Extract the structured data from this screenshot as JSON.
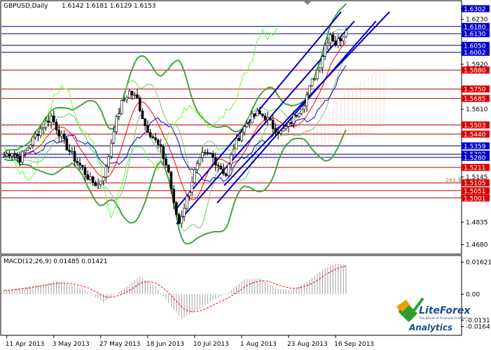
{
  "header": {
    "symbol": "GBPUSD,Daily",
    "ohlc": "1.6142 1.6181 1.6129 1.6153"
  },
  "colors": {
    "background": "#ffffff",
    "bull_candle": "#00c000",
    "bear_candle": "#000000",
    "channel": "#0000c0",
    "resistance": "#c00000",
    "support_blue": "#00006e",
    "bollinger": "#41a541",
    "envelope_inner": "#ff0000",
    "chikou": "#66ff33",
    "macd_hist": "#a0a0a0",
    "macd_signal": "#ff0000",
    "price_tag_red": "#dd0000",
    "price_tag_blue": "#0000cc"
  },
  "price_scale": {
    "ticks": [
      "1.6302",
      "1.6230",
      "1.6050",
      "1.5920",
      "1.5750",
      "1.5610",
      "1.5440",
      "1.5280",
      "1.5145",
      "1.5010",
      "1.4835",
      "1.4680"
    ],
    "ylim": [
      1.468,
      1.6302
    ]
  },
  "level_tags": [
    {
      "label": "1.6302",
      "value": 1.6302,
      "color": "#0000cc"
    },
    {
      "label": "1.6180",
      "value": 1.618,
      "color": "#0000cc"
    },
    {
      "label": "1.6130",
      "value": 1.613,
      "color": "#0000cc"
    },
    {
      "label": "1.6050",
      "value": 1.605,
      "color": "#0000cc"
    },
    {
      "label": "1.6002",
      "value": 1.6002,
      "color": "#0000cc"
    },
    {
      "label": "1.5880",
      "value": 1.588,
      "color": "#dd0000"
    },
    {
      "label": "1.5750",
      "value": 1.575,
      "color": "#dd0000"
    },
    {
      "label": "1.5685",
      "value": 1.5685,
      "color": "#dd0000"
    },
    {
      "label": "1.5503",
      "value": 1.5503,
      "color": "#dd0000"
    },
    {
      "label": "1.5440",
      "value": 1.544,
      "color": "#dd0000"
    },
    {
      "label": "1.5359",
      "value": 1.5359,
      "color": "#0000cc"
    },
    {
      "label": "1.5302",
      "value": 1.5302,
      "color": "#0000cc"
    },
    {
      "label": "1.5280",
      "value": 1.528,
      "color": "#0000cc"
    },
    {
      "label": "1.5211",
      "value": 1.5211,
      "color": "#dd0000"
    },
    {
      "label": "1.5105",
      "value": 1.5105,
      "color": "#dd0000"
    },
    {
      "label": "1.5051",
      "value": 1.5051,
      "color": "#dd0000"
    },
    {
      "label": "1.5001",
      "value": 1.5001,
      "color": "#dd0000"
    }
  ],
  "fibo_label": "261.8",
  "time_axis": [
    "11 Apr 2013",
    "3 May 2013",
    "27 May 2013",
    "18 Jun 2013",
    "10 Jul 2013",
    "1 Aug 2013",
    "23 Aug 2013",
    "16 Sep 2013"
  ],
  "macd": {
    "title": "MACD(12,26,9) 0.01485 0.01421",
    "ticks": [
      "0.01621",
      "0.00",
      "-0.0131",
      "-0.0164"
    ],
    "ylim": [
      -0.0164,
      0.01621
    ]
  },
  "logo": {
    "brand": "LiteForex",
    "tagline": "The World of Financial Freedom",
    "sub": "Analytics"
  },
  "chart_data": {
    "type": "candlestick",
    "title": "GBPUSD,Daily",
    "x": [
      "11 Apr 2013",
      "3 May 2013",
      "27 May 2013",
      "18 Jun 2013",
      "10 Jul 2013",
      "1 Aug 2013",
      "23 Aug 2013",
      "16 Sep 2013"
    ],
    "close_path": [
      [
        0,
        1.529
      ],
      [
        3,
        1.532
      ],
      [
        6,
        1.527
      ],
      [
        9,
        1.535
      ],
      [
        12,
        1.543
      ],
      [
        15,
        1.55
      ],
      [
        18,
        1.556
      ],
      [
        21,
        1.545
      ],
      [
        24,
        1.535
      ],
      [
        27,
        1.527
      ],
      [
        30,
        1.52
      ],
      [
        33,
        1.512
      ],
      [
        36,
        1.509
      ],
      [
        39,
        1.52
      ],
      [
        42,
        1.548
      ],
      [
        45,
        1.565
      ],
      [
        48,
        1.573
      ],
      [
        51,
        1.568
      ],
      [
        54,
        1.55
      ],
      [
        57,
        1.542
      ],
      [
        60,
        1.533
      ],
      [
        63,
        1.518
      ],
      [
        65,
        1.495
      ],
      [
        67,
        1.483
      ],
      [
        70,
        1.5
      ],
      [
        73,
        1.518
      ],
      [
        76,
        1.529
      ],
      [
        79,
        1.53
      ],
      [
        82,
        1.523
      ],
      [
        85,
        1.516
      ],
      [
        88,
        1.535
      ],
      [
        91,
        1.546
      ],
      [
        94,
        1.554
      ],
      [
        97,
        1.558
      ],
      [
        100,
        1.556
      ],
      [
        103,
        1.549
      ],
      [
        106,
        1.545
      ],
      [
        109,
        1.55
      ],
      [
        112,
        1.558
      ],
      [
        115,
        1.566
      ],
      [
        118,
        1.58
      ],
      [
        121,
        1.592
      ],
      [
        123,
        1.605
      ],
      [
        125,
        1.613
      ],
      [
        127,
        1.606
      ],
      [
        129,
        1.61
      ],
      [
        131,
        1.6153
      ]
    ],
    "macd_hist": [
      [
        0,
        0.002
      ],
      [
        10,
        0.004
      ],
      [
        20,
        0.0065
      ],
      [
        30,
        0.003
      ],
      [
        38,
        -0.004
      ],
      [
        45,
        0.002
      ],
      [
        52,
        0.009
      ],
      [
        58,
        0.004
      ],
      [
        64,
        -0.006
      ],
      [
        68,
        -0.0125
      ],
      [
        74,
        -0.008
      ],
      [
        80,
        -0.003
      ],
      [
        86,
        0.001
      ],
      [
        92,
        0.0075
      ],
      [
        98,
        0.008
      ],
      [
        104,
        0.003
      ],
      [
        110,
        0.002
      ],
      [
        116,
        0.006
      ],
      [
        122,
        0.0125
      ],
      [
        127,
        0.0155
      ],
      [
        131,
        0.01485
      ]
    ],
    "macd_signal": 0.01421,
    "ylim": [
      1.468,
      1.6302
    ]
  }
}
